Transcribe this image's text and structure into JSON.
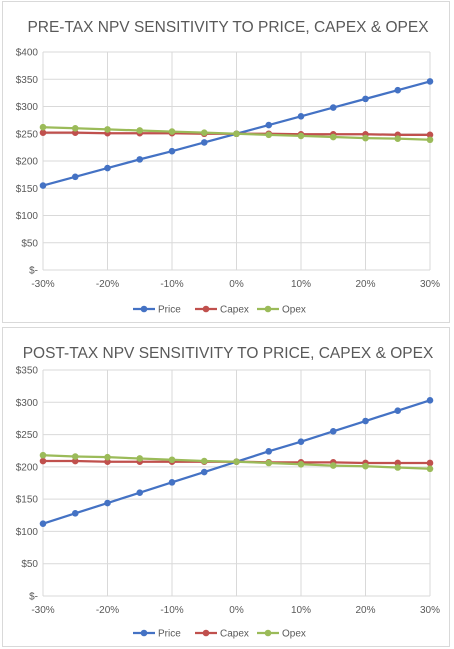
{
  "chart_data": [
    {
      "type": "line",
      "title": "PRE-TAX NPV SENSITIVITY TO PRICE, CAPEX & OPEX",
      "categories": [
        "-30%",
        "-25%",
        "-20%",
        "-15%",
        "-10%",
        "-5%",
        "0%",
        "5%",
        "10%",
        "15%",
        "20%",
        "25%",
        "30%"
      ],
      "x_tick_labels": [
        "-30%",
        "-20%",
        "-10%",
        "0%",
        "10%",
        "20%",
        "30%"
      ],
      "y_tick_labels": [
        "$-",
        "$50",
        "$100",
        "$150",
        "$200",
        "$250",
        "$300",
        "$350",
        "$400"
      ],
      "ylim": [
        0,
        400
      ],
      "grid": true,
      "legend": "bottom",
      "series": [
        {
          "name": "Price",
          "color": "#4472c4",
          "values": [
            155,
            171,
            187,
            203,
            218,
            234,
            250,
            266,
            282,
            298,
            314,
            330,
            346
          ]
        },
        {
          "name": "Capex",
          "color": "#c0504d",
          "values": [
            252,
            252,
            251,
            251,
            251,
            250,
            250,
            250,
            249,
            249,
            249,
            248,
            248
          ]
        },
        {
          "name": "Opex",
          "color": "#9bbb59",
          "values": [
            262,
            260,
            258,
            256,
            254,
            252,
            250,
            248,
            246,
            244,
            242,
            241,
            239
          ]
        }
      ]
    },
    {
      "type": "line",
      "title": "POST-TAX NPV SENSITIVITY TO PRICE, CAPEX & OPEX",
      "categories": [
        "-30%",
        "-25%",
        "-20%",
        "-15%",
        "-10%",
        "-5%",
        "0%",
        "5%",
        "10%",
        "15%",
        "20%",
        "25%",
        "30%"
      ],
      "x_tick_labels": [
        "-30%",
        "-20%",
        "-10%",
        "0%",
        "10%",
        "20%",
        "30%"
      ],
      "y_tick_labels": [
        "$-",
        "$50",
        "$100",
        "$150",
        "$200",
        "$250",
        "$300",
        "$350"
      ],
      "ylim": [
        0,
        350
      ],
      "grid": true,
      "legend": "bottom",
      "series": [
        {
          "name": "Price",
          "color": "#4472c4",
          "values": [
            112,
            128,
            144,
            160,
            176,
            192,
            208,
            224,
            239,
            255,
            271,
            287,
            303
          ]
        },
        {
          "name": "Capex",
          "color": "#c0504d",
          "values": [
            209,
            209,
            208,
            208,
            208,
            208,
            208,
            207,
            207,
            207,
            206,
            206,
            206
          ]
        },
        {
          "name": "Opex",
          "color": "#9bbb59",
          "values": [
            218,
            216,
            215,
            213,
            211,
            209,
            208,
            206,
            204,
            202,
            201,
            199,
            197
          ]
        }
      ]
    }
  ]
}
